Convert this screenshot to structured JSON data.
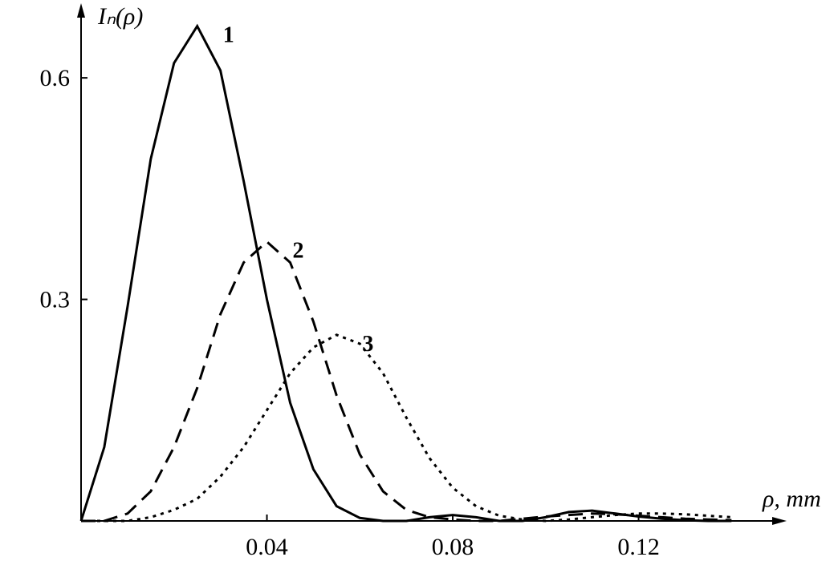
{
  "chart_data": {
    "type": "line",
    "y_label": "Iₙ(ρ)",
    "x_label": "ρ, mm",
    "x": [
      0,
      0.005,
      0.01,
      0.015,
      0.02,
      0.025,
      0.03,
      0.035,
      0.04,
      0.045,
      0.05,
      0.055,
      0.06,
      0.065,
      0.07,
      0.075,
      0.08,
      0.085,
      0.09,
      0.095,
      0.1,
      0.105,
      0.11,
      0.115,
      0.12,
      0.125,
      0.13,
      0.135,
      0.14
    ],
    "series": [
      {
        "name": "1",
        "color": "#000000",
        "dash": "solid",
        "values": [
          0,
          0.1,
          0.29,
          0.49,
          0.62,
          0.67,
          0.61,
          0.46,
          0.3,
          0.16,
          0.07,
          0.02,
          0.004,
          0,
          0,
          0.005,
          0.008,
          0.005,
          0,
          0,
          0.005,
          0.012,
          0.014,
          0.01,
          0.006,
          0.003,
          0.001,
          0,
          0
        ]
      },
      {
        "name": "2",
        "color": "#000000",
        "dash": "dashed",
        "values": [
          0,
          0,
          0.01,
          0.04,
          0.1,
          0.18,
          0.28,
          0.35,
          0.378,
          0.35,
          0.27,
          0.17,
          0.09,
          0.04,
          0.015,
          0.005,
          0.002,
          0,
          0,
          0.003,
          0.006,
          0.008,
          0.01,
          0.009,
          0.007,
          0.005,
          0.003,
          0.002,
          0.001
        ]
      },
      {
        "name": "3",
        "color": "#000000",
        "dash": "dotted",
        "values": [
          0,
          0,
          0,
          0.005,
          0.015,
          0.03,
          0.06,
          0.1,
          0.15,
          0.2,
          0.235,
          0.252,
          0.24,
          0.2,
          0.14,
          0.085,
          0.045,
          0.02,
          0.007,
          0.002,
          0,
          0.002,
          0.005,
          0.008,
          0.01,
          0.01,
          0.009,
          0.007,
          0.005
        ]
      }
    ],
    "xlim": [
      0,
      0.151
    ],
    "ylim": [
      0,
      0.7
    ],
    "xticks": [
      0.04,
      0.08,
      0.12
    ],
    "yticks": [
      0.3,
      0.6
    ]
  }
}
